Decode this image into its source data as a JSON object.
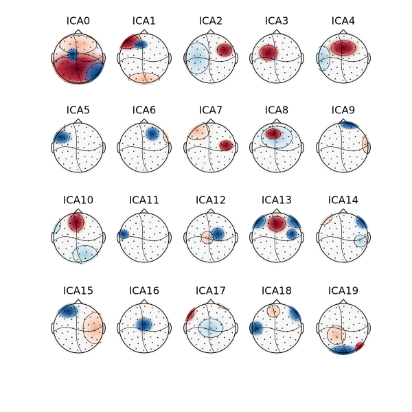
{
  "panels": [
    {
      "title": "ICA0"
    },
    {
      "title": "ICA1"
    },
    {
      "title": "ICA2"
    },
    {
      "title": "ICA3"
    },
    {
      "title": "ICA4"
    },
    {
      "title": "ICA5"
    },
    {
      "title": "ICA6"
    },
    {
      "title": "ICA7"
    },
    {
      "title": "ICA8"
    },
    {
      "title": "ICA9"
    },
    {
      "title": "ICA10"
    },
    {
      "title": "ICA11"
    },
    {
      "title": "ICA12"
    },
    {
      "title": "ICA13"
    },
    {
      "title": "ICA14"
    },
    {
      "title": "ICA15"
    },
    {
      "title": "ICA16"
    },
    {
      "title": "ICA17"
    },
    {
      "title": "ICA18"
    },
    {
      "title": "ICA19"
    }
  ]
}
